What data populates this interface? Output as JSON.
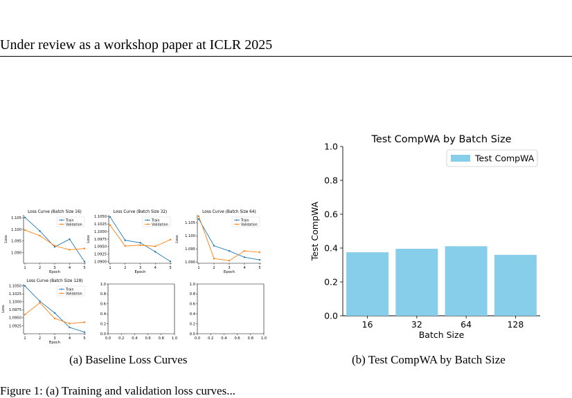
{
  "header": {
    "text": "Under review as a workshop paper at ICLR 2025"
  },
  "captions": {
    "a": "(a) Baseline Loss Curves",
    "b": "(b) Test CompWA by Batch Size"
  },
  "body_text": "Figure 1: (a) Training and validation loss curves...",
  "chart_data": [
    {
      "type": "line",
      "title": "Loss Curve (Batch Size 16)",
      "xlabel": "Epoch",
      "ylabel": "Loss",
      "x": [
        1,
        2,
        3,
        4,
        5
      ],
      "series": [
        {
          "name": "Train",
          "values": [
            1.1051,
            1.0993,
            1.0925,
            1.0958,
            1.0862
          ],
          "color": "#1f77b4"
        },
        {
          "name": "Validation",
          "values": [
            1.0997,
            1.0973,
            1.093,
            1.0913,
            1.0918
          ],
          "color": "#ff7f0e"
        }
      ],
      "yticks": [
        1.09,
        1.095,
        1.1,
        1.105
      ],
      "ylim": [
        1.0855,
        1.1062
      ],
      "legend": "top-right"
    },
    {
      "type": "line",
      "title": "Loss Curve (Batch Size 32)",
      "xlabel": "Epoch",
      "ylabel": "Loss",
      "x": [
        1,
        2,
        3,
        4,
        5
      ],
      "series": [
        {
          "name": "Train",
          "values": [
            1.1048,
            1.0971,
            1.0963,
            1.0933,
            1.0901
          ],
          "color": "#1f77b4"
        },
        {
          "name": "Validation",
          "values": [
            1.1021,
            1.0952,
            1.0955,
            1.0951,
            1.0973
          ],
          "color": "#ff7f0e"
        }
      ],
      "yticks": [
        1.09,
        1.0925,
        1.095,
        1.0975,
        1.1,
        1.1025,
        1.105
      ],
      "ylim": [
        1.0895,
        1.1055
      ],
      "legend": "top-right"
    },
    {
      "type": "line",
      "title": "Loss Curve (Batch Size 64)",
      "xlabel": "Epoch",
      "ylabel": "Loss",
      "x": [
        1,
        2,
        3,
        4,
        5
      ],
      "series": [
        {
          "name": "Train",
          "values": [
            1.1064,
            1.0962,
            1.0942,
            1.0918,
            1.0908
          ],
          "color": "#1f77b4"
        },
        {
          "name": "Validation",
          "values": [
            1.1075,
            1.0913,
            1.0905,
            1.0942,
            1.0937
          ],
          "color": "#ff7f0e"
        }
      ],
      "yticks": [
        1.09,
        1.095,
        1.1,
        1.105
      ],
      "ylim": [
        1.0895,
        1.108
      ],
      "legend": "top-right"
    },
    {
      "type": "line",
      "title": "Loss Curve (Batch Size 128)",
      "xlabel": "Epoch",
      "ylabel": "Loss",
      "x": [
        1,
        2,
        3,
        4,
        5
      ],
      "series": [
        {
          "name": "Train",
          "values": [
            1.105,
            1.1002,
            1.0965,
            1.092,
            1.0905
          ],
          "color": "#1f77b4"
        },
        {
          "name": "Validation",
          "values": [
            1.096,
            1.0997,
            1.0948,
            1.0932,
            1.0936
          ],
          "color": "#ff7f0e"
        }
      ],
      "yticks": [
        1.0925,
        1.095,
        1.0975,
        1.1,
        1.1025,
        1.105
      ],
      "ylim": [
        1.09,
        1.1056
      ],
      "legend": "top-right"
    },
    {
      "type": "empty",
      "xticks": [
        0.0,
        0.2,
        0.4,
        0.6,
        0.8,
        1.0
      ],
      "yticks": [
        0.0,
        0.2,
        0.4,
        0.6,
        0.8,
        1.0
      ]
    },
    {
      "type": "empty",
      "xticks": [
        0.0,
        0.2,
        0.4,
        0.6,
        0.8,
        1.0
      ],
      "yticks": [
        0.0,
        0.2,
        0.4,
        0.6,
        0.8,
        1.0
      ]
    },
    {
      "type": "bar",
      "title": "Test CompWA by Batch Size",
      "xlabel": "Batch Size",
      "ylabel": "Test CompWA",
      "categories": [
        "16",
        "32",
        "64",
        "128"
      ],
      "series": [
        {
          "name": "Test CompWA",
          "values": [
            0.375,
            0.396,
            0.411,
            0.36
          ]
        }
      ],
      "color": "#87ceeb",
      "ylim": [
        0,
        1.0
      ],
      "yticks": [
        0.0,
        0.2,
        0.4,
        0.6,
        0.8,
        1.0
      ],
      "legend": "top-right"
    }
  ]
}
